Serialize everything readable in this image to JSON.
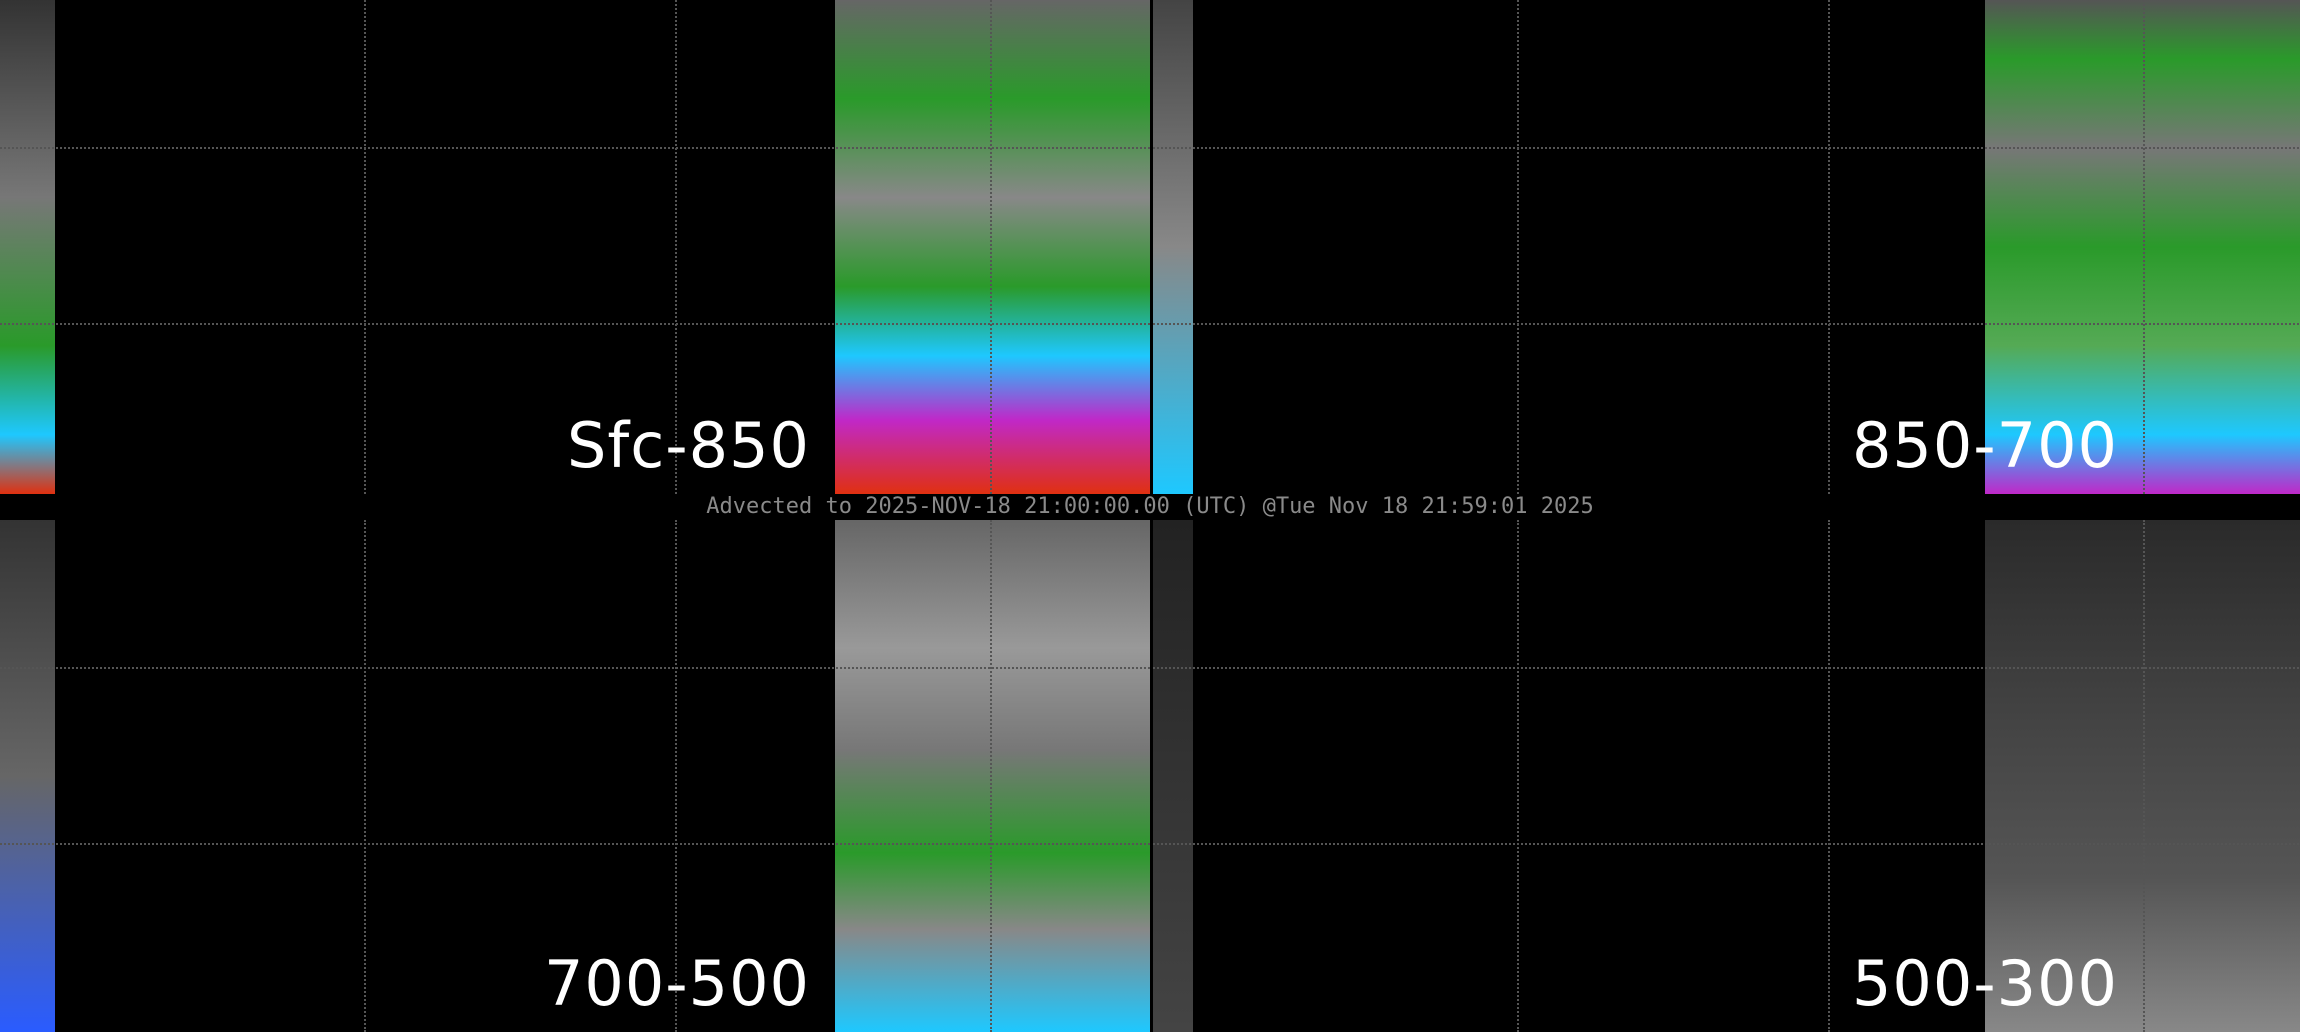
{
  "caption": "Advected to 2025-NOV-18 21:00:00.00 (UTC) @Tue Nov 18 21:59:01 2025",
  "panels": [
    {
      "label": "Sfc-850"
    },
    {
      "label": "850-700"
    },
    {
      "label": "700-500"
    },
    {
      "label": "500-300"
    }
  ],
  "colors": {
    "background": "#000000",
    "moist_green": "#1f9a1f",
    "cyan": "#1ec8ff",
    "blue": "#2a5cff",
    "magenta": "#c028c8",
    "red": "#e03010",
    "grid": "#555555",
    "coastline": "#ffffff"
  }
}
